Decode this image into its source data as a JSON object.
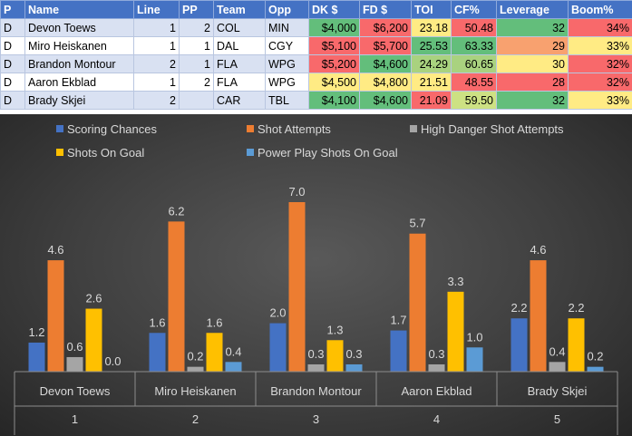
{
  "table": {
    "headers": [
      "P",
      "Name",
      "Line",
      "PP",
      "Team",
      "Opp",
      "DK $",
      "FD $",
      "TOI",
      "CF%",
      "Leverage",
      "Boom%"
    ],
    "rows": [
      {
        "p": "D",
        "name": "Devon Toews",
        "line": "1",
        "pp": "2",
        "team": "COL",
        "opp": "MIN",
        "dk": "$4,000",
        "fd": "$6,200",
        "toi": "23.18",
        "cf": "50.48",
        "leverage": "32",
        "boom": "34%"
      },
      {
        "p": "D",
        "name": "Miro Heiskanen",
        "line": "1",
        "pp": "1",
        "team": "DAL",
        "opp": "CGY",
        "dk": "$5,100",
        "fd": "$5,700",
        "toi": "25.53",
        "cf": "63.33",
        "leverage": "29",
        "boom": "33%"
      },
      {
        "p": "D",
        "name": "Brandon Montour",
        "line": "2",
        "pp": "1",
        "team": "FLA",
        "opp": "WPG",
        "dk": "$5,200",
        "fd": "$4,600",
        "toi": "24.29",
        "cf": "60.65",
        "leverage": "30",
        "boom": "32%"
      },
      {
        "p": "D",
        "name": "Aaron Ekblad",
        "line": "1",
        "pp": "2",
        "team": "FLA",
        "opp": "WPG",
        "dk": "$4,500",
        "fd": "$4,800",
        "toi": "21.51",
        "cf": "48.55",
        "leverage": "28",
        "boom": "32%"
      },
      {
        "p": "D",
        "name": "Brady Skjei",
        "line": "2",
        "pp": "",
        "team": "CAR",
        "opp": "TBL",
        "dk": "$4,100",
        "fd": "$4,600",
        "toi": "21.09",
        "cf": "59.50",
        "leverage": "32",
        "boom": "33%"
      }
    ],
    "cell_colors": {
      "dk": [
        "#63be7b",
        "#f8696b",
        "#f8696b",
        "#ffeb84",
        "#63be7b"
      ],
      "fd": [
        "#f8696b",
        "#f8696b",
        "#63be7b",
        "#ffeb84",
        "#63be7b"
      ],
      "toi": [
        "#ffeb84",
        "#63be7b",
        "#a9d27f",
        "#ffeb84",
        "#f8696b"
      ],
      "cf": [
        "#f8696b",
        "#63be7b",
        "#a9d27f",
        "#f8696b",
        "#cde183"
      ],
      "leverage": [
        "#63be7b",
        "#f8a16f",
        "#ffeb84",
        "#f8696b",
        "#63be7b"
      ],
      "boom": [
        "#f8696b",
        "#ffeb84",
        "#f8696b",
        "#f8696b",
        "#ffeb84"
      ]
    }
  },
  "chart_data": {
    "type": "bar",
    "categories": [
      {
        "name": "Devon Toews",
        "rank": "1"
      },
      {
        "name": "Miro Heiskanen",
        "rank": "2"
      },
      {
        "name": "Brandon Montour",
        "rank": "3"
      },
      {
        "name": "Aaron Ekblad",
        "rank": "4"
      },
      {
        "name": "Brady Skjei",
        "rank": "5"
      }
    ],
    "series": [
      {
        "name": "Scoring Chances",
        "color": "#4472c4",
        "values": [
          1.2,
          1.6,
          2.0,
          1.7,
          2.2
        ],
        "labels": [
          "1.2",
          "1.6",
          "2.0",
          "1.7",
          "2.2"
        ]
      },
      {
        "name": "Shot Attempts",
        "color": "#ed7d31",
        "values": [
          4.6,
          6.2,
          7.0,
          5.7,
          4.6
        ],
        "labels": [
          "4.6",
          "6.2",
          "7.0",
          "5.7",
          "4.6"
        ]
      },
      {
        "name": "High Danger Shot Attempts",
        "color": "#a5a5a5",
        "values": [
          0.6,
          0.2,
          0.3,
          0.3,
          0.4
        ],
        "labels": [
          "0.6",
          "0.2",
          "0.3",
          "0.3",
          "0.4"
        ]
      },
      {
        "name": "Shots On Goal",
        "color": "#ffc000",
        "values": [
          2.6,
          1.6,
          1.3,
          3.3,
          2.2
        ],
        "labels": [
          "2.6",
          "1.6",
          "1.3",
          "3.3",
          "2.2"
        ]
      },
      {
        "name": "Power Play Shots On Goal",
        "color": "#5b9bd5",
        "values": [
          0.0,
          0.4,
          0.3,
          1.0,
          0.2
        ],
        "labels": [
          "0.0",
          "0.4",
          "0.3",
          "1.0",
          "0.2"
        ]
      }
    ],
    "ylim": [
      0,
      7.0
    ],
    "legend_position": "top",
    "grid": false
  }
}
